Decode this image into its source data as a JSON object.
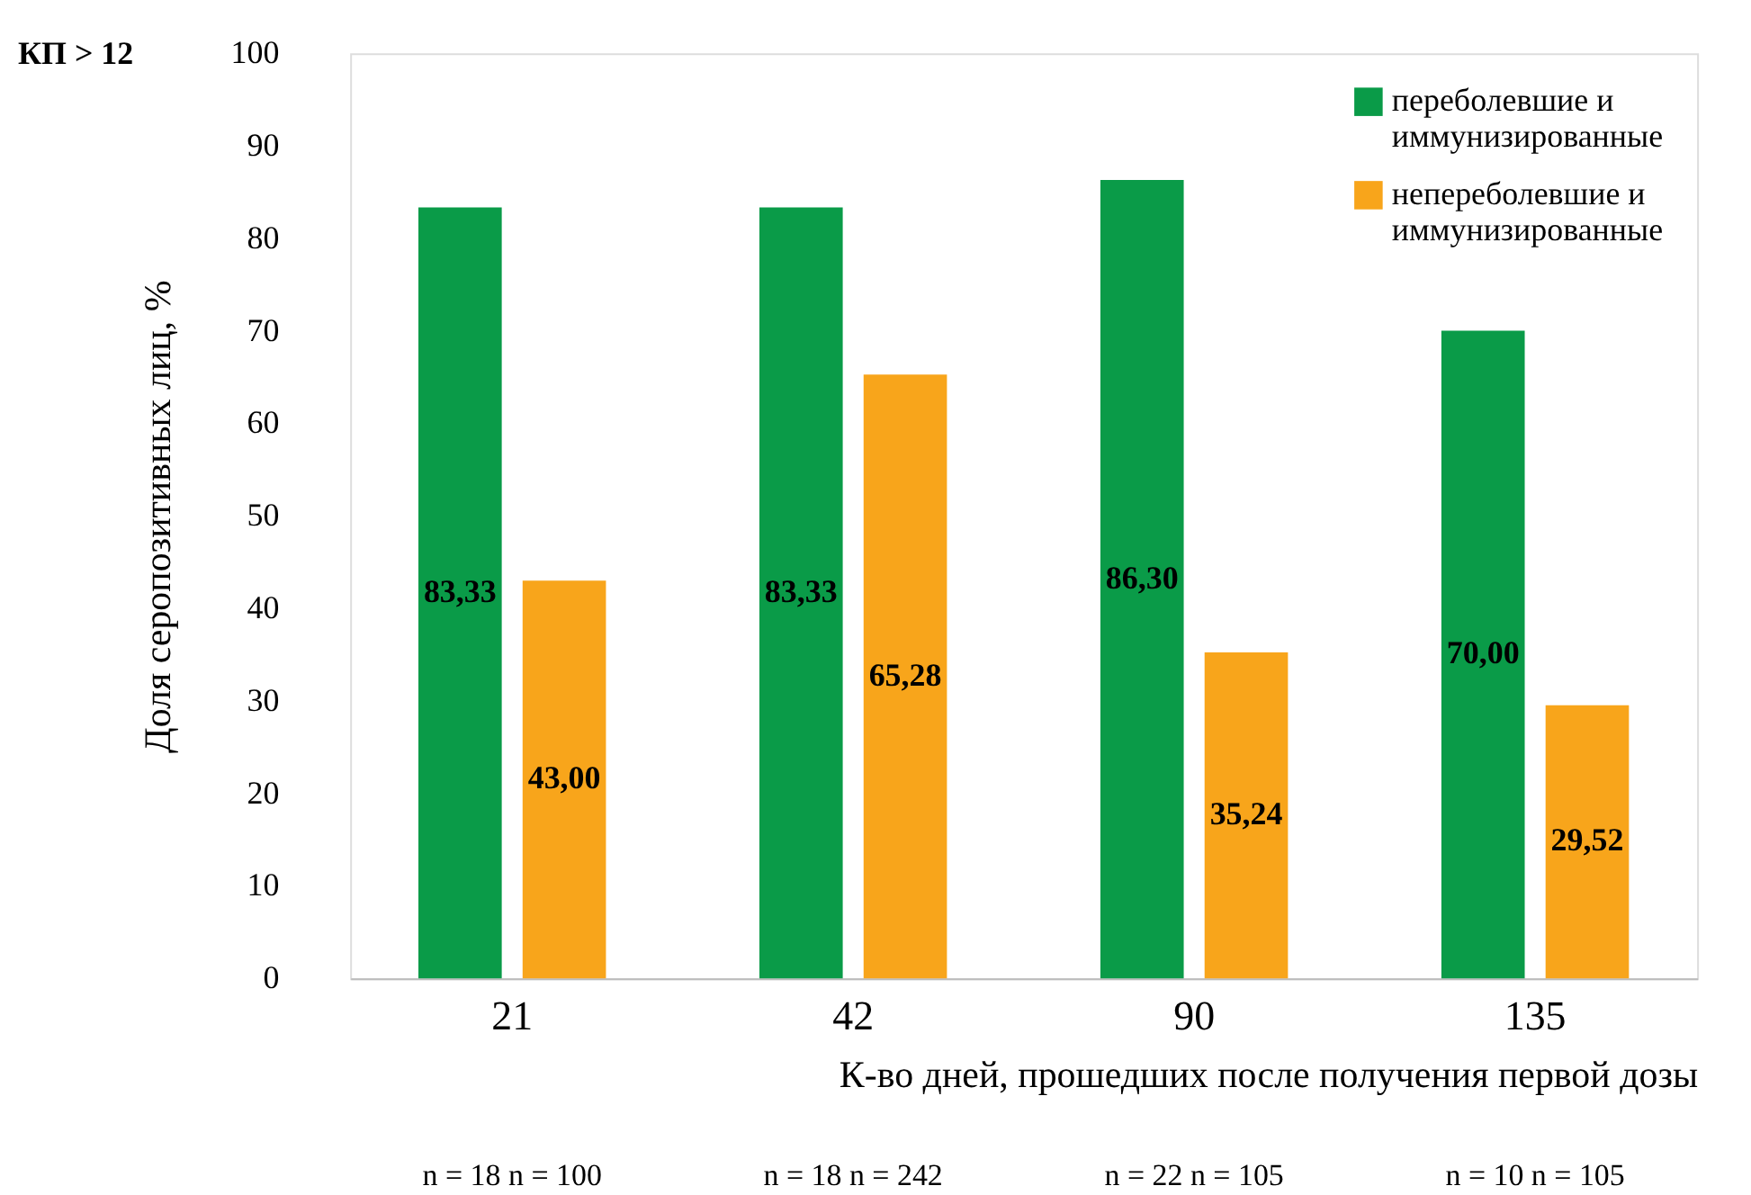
{
  "chart_data": {
    "type": "bar",
    "ylabel": "Доля серопозитивных лиц, %",
    "xlabel": "К-во дней, прошедших после получения первой дозы",
    "categories": [
      "21",
      "42",
      "90",
      "135"
    ],
    "series": [
      {
        "name": "переболевшие и иммунизированные",
        "color": "#0a9b48",
        "values": [
          83.33,
          83.33,
          86.3,
          70.0
        ],
        "value_labels": [
          "83,33",
          "83,33",
          "86,30",
          "70,00"
        ]
      },
      {
        "name": "непереболевшие и иммунизированные",
        "color": "#f8a51b",
        "values": [
          43.0,
          65.28,
          35.24,
          29.52
        ],
        "value_labels": [
          "43,00",
          "65,28",
          "35,24",
          "29,52"
        ]
      }
    ],
    "ylim": [
      0,
      100
    ],
    "yticks": [
      0,
      10,
      20,
      30,
      40,
      50,
      60,
      70,
      80,
      90,
      100
    ],
    "grid": false,
    "legend": "top right",
    "annotations": [
      "КП > 12",
      "n = 18  n = 100",
      "n = 18  n = 242",
      "n = 22  n = 105",
      "n = 10  n = 105"
    ]
  }
}
